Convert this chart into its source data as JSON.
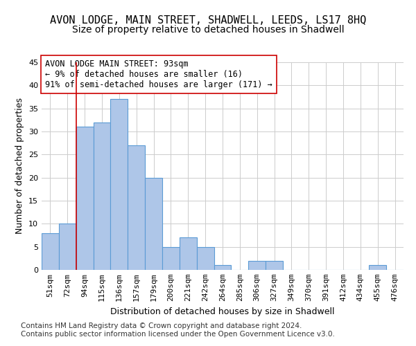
{
  "title": "AVON LODGE, MAIN STREET, SHADWELL, LEEDS, LS17 8HQ",
  "subtitle": "Size of property relative to detached houses in Shadwell",
  "xlabel": "Distribution of detached houses by size in Shadwell",
  "ylabel": "Number of detached properties",
  "categories": [
    "51sqm",
    "72sqm",
    "94sqm",
    "115sqm",
    "136sqm",
    "157sqm",
    "179sqm",
    "200sqm",
    "221sqm",
    "242sqm",
    "264sqm",
    "285sqm",
    "306sqm",
    "327sqm",
    "349sqm",
    "370sqm",
    "391sqm",
    "412sqm",
    "434sqm",
    "455sqm",
    "476sqm"
  ],
  "values": [
    8,
    10,
    31,
    32,
    37,
    27,
    20,
    5,
    7,
    5,
    1,
    0,
    2,
    2,
    0,
    0,
    0,
    0,
    0,
    1,
    0
  ],
  "bar_color": "#aec6e8",
  "bar_edge_color": "#5b9bd5",
  "vline_x": 2,
  "vline_color": "#cc0000",
  "annotation_text": "AVON LODGE MAIN STREET: 93sqm\n← 9% of detached houses are smaller (16)\n91% of semi-detached houses are larger (171) →",
  "annotation_box_color": "#ffffff",
  "annotation_box_edge": "#cc0000",
  "ylim": [
    0,
    45
  ],
  "yticks": [
    0,
    5,
    10,
    15,
    20,
    25,
    30,
    35,
    40,
    45
  ],
  "background_color": "#ffffff",
  "grid_color": "#cccccc",
  "footer": "Contains HM Land Registry data © Crown copyright and database right 2024.\nContains public sector information licensed under the Open Government Licence v3.0.",
  "title_fontsize": 11,
  "subtitle_fontsize": 10,
  "axis_label_fontsize": 9,
  "tick_fontsize": 8,
  "annotation_fontsize": 8.5,
  "footer_fontsize": 7.5
}
